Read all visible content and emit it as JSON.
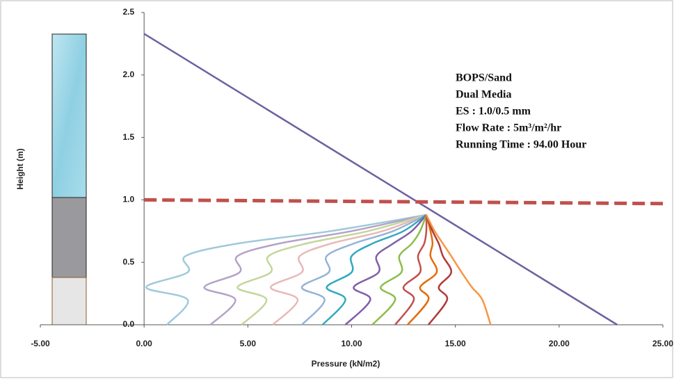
{
  "chart_data": {
    "type": "line",
    "x_label": "Pressure (kN/m2)",
    "y_label": "Height (m)",
    "annotations": [
      "BOPS/Sand",
      "Dual Media",
      "ES : 1.0/0.5 mm",
      "Flow Rate : 5m³/m²/hr",
      "Running Time  : 94.00 Hour"
    ],
    "xlim": [
      -5,
      25
    ],
    "xticks": [
      {
        "value": -5,
        "label": "-5.00"
      },
      {
        "value": 0,
        "label": "0.00"
      },
      {
        "value": 5,
        "label": "5.00"
      },
      {
        "value": 10,
        "label": "10.00"
      },
      {
        "value": 15,
        "label": "15.00"
      },
      {
        "value": 20,
        "label": "20.00"
      },
      {
        "value": 25,
        "label": "25.00"
      }
    ],
    "ylim": [
      0,
      2.5
    ],
    "yticks": [
      {
        "value": 0,
        "label": "0.0"
      },
      0.5,
      {
        "value": 1,
        "label": "1.0"
      },
      1.5,
      {
        "value": 2,
        "label": "2.0"
      },
      2.5
    ],
    "series": [
      {
        "color": "#7060a0",
        "style": "solid",
        "x": [
          0,
          22.8
        ],
        "values": [
          2.33,
          0
        ]
      },
      {
        "color": "#c0504d",
        "style": "dashed",
        "x": [
          0,
          25
        ],
        "values": [
          1.0,
          0.97
        ]
      },
      {
        "color": "#9fc9dc",
        "style": "smooth",
        "x": [
          1.1,
          2.1,
          0.1,
          2.1,
          2.0,
          4.5,
          9.0,
          13.6
        ],
        "values": [
          0,
          0.2,
          0.3,
          0.42,
          0.55,
          0.65,
          0.75,
          0.88
        ]
      },
      {
        "color": "#b3a2c7",
        "style": "smooth",
        "x": [
          3.2,
          4.4,
          2.9,
          4.6,
          4.5,
          6.5,
          10.0,
          13.6
        ],
        "values": [
          0,
          0.2,
          0.3,
          0.42,
          0.55,
          0.65,
          0.75,
          0.88
        ]
      },
      {
        "color": "#c3d69b",
        "style": "smooth",
        "x": [
          4.7,
          5.9,
          4.5,
          6.1,
          6.0,
          7.8,
          10.8,
          13.6
        ],
        "values": [
          0,
          0.2,
          0.3,
          0.42,
          0.55,
          0.65,
          0.75,
          0.88
        ]
      },
      {
        "color": "#e6b9b8",
        "style": "smooth",
        "x": [
          6.2,
          7.4,
          6.1,
          7.6,
          7.5,
          9.0,
          11.5,
          13.6
        ],
        "values": [
          0,
          0.2,
          0.3,
          0.42,
          0.55,
          0.65,
          0.75,
          0.88
        ]
      },
      {
        "color": "#95b3d7",
        "style": "smooth",
        "x": [
          7.6,
          8.7,
          7.6,
          8.9,
          8.8,
          10.1,
          12.0,
          13.6
        ],
        "values": [
          0,
          0.2,
          0.3,
          0.42,
          0.55,
          0.65,
          0.75,
          0.88
        ]
      },
      {
        "color": "#31a9c1",
        "style": "smooth",
        "x": [
          8.6,
          9.7,
          8.8,
          10.0,
          10.0,
          11.0,
          12.5,
          13.6
        ],
        "values": [
          0,
          0.2,
          0.3,
          0.42,
          0.55,
          0.65,
          0.75,
          0.88
        ]
      },
      {
        "color": "#7f5fa6",
        "style": "smooth",
        "x": [
          9.7,
          10.9,
          10.1,
          11.3,
          11.2,
          12.0,
          12.9,
          13.6
        ],
        "values": [
          0,
          0.2,
          0.3,
          0.42,
          0.55,
          0.65,
          0.75,
          0.88
        ]
      },
      {
        "color": "#8cbd4a",
        "style": "smooth",
        "x": [
          11.0,
          12.1,
          11.4,
          12.4,
          12.3,
          12.9,
          13.3,
          13.6
        ],
        "values": [
          0,
          0.2,
          0.3,
          0.42,
          0.55,
          0.65,
          0.75,
          0.88
        ]
      },
      {
        "color": "#c0504d",
        "style": "smooth",
        "x": [
          12.1,
          13.0,
          12.5,
          13.3,
          13.2,
          13.5,
          13.6,
          13.6
        ],
        "values": [
          0,
          0.2,
          0.3,
          0.42,
          0.55,
          0.65,
          0.75,
          0.88
        ]
      },
      {
        "color": "#e46c0a",
        "style": "smooth",
        "x": [
          12.7,
          13.7,
          13.3,
          14.1,
          13.8,
          13.9,
          13.8,
          13.6
        ],
        "values": [
          0,
          0.2,
          0.3,
          0.42,
          0.55,
          0.65,
          0.75,
          0.88
        ]
      },
      {
        "color": "#b03a3a",
        "style": "smooth",
        "x": [
          13.7,
          14.6,
          14.2,
          14.8,
          14.4,
          14.2,
          13.9,
          13.6
        ],
        "values": [
          0,
          0.2,
          0.3,
          0.42,
          0.55,
          0.65,
          0.75,
          0.88
        ]
      },
      {
        "color": "#f79646",
        "style": "smooth",
        "x": [
          16.7,
          16.3,
          15.8,
          15.3,
          14.8,
          14.4,
          14.0,
          13.6
        ],
        "values": [
          0,
          0.2,
          0.3,
          0.42,
          0.55,
          0.65,
          0.75,
          0.88
        ]
      }
    ]
  }
}
